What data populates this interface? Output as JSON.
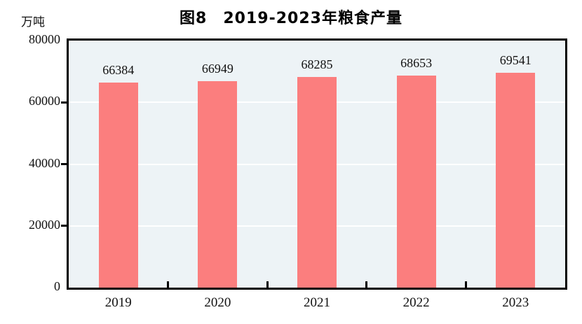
{
  "chart_data": {
    "type": "bar",
    "title": "图8　2019-2023年粮食产量",
    "unit_label": "万吨",
    "categories": [
      "2019",
      "2020",
      "2021",
      "2022",
      "2023"
    ],
    "values": [
      66384,
      66949,
      68285,
      68653,
      69541
    ],
    "series_name": "粮食产量",
    "xlabel": "",
    "ylabel": "万吨",
    "ylim": [
      0,
      80000
    ],
    "y_ticks": [
      0,
      20000,
      40000,
      60000,
      80000
    ],
    "grid": true,
    "legend": "none",
    "colors": {
      "bar": "#FB7E7E",
      "plot_background": "#EDF3F6",
      "gridline": "#FFFFFF",
      "axis_frame": "#000000",
      "text": "#111111",
      "page_background": "#FFFFFF"
    }
  }
}
